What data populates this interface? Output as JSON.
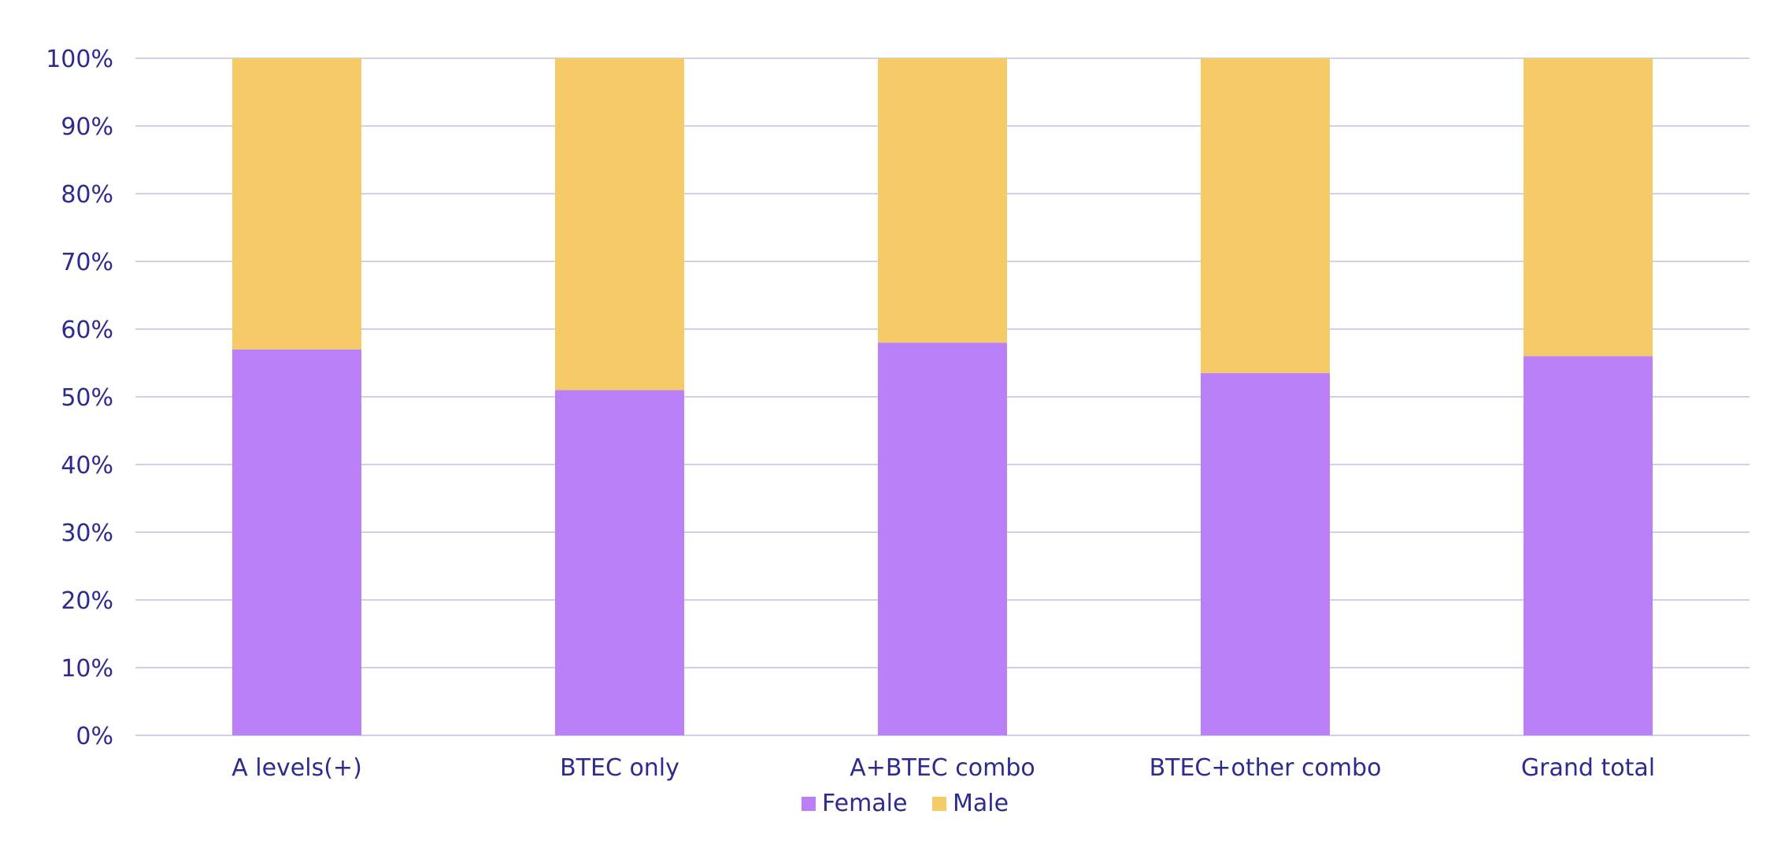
{
  "chart_data": {
    "type": "bar",
    "stacked": true,
    "categories": [
      "A levels(+)",
      "BTEC only",
      "A+BTEC combo",
      "BTEC+other combo",
      "Grand total"
    ],
    "series": [
      {
        "name": "Female",
        "values": [
          57,
          51,
          58,
          53.5,
          56
        ],
        "color": "#b980f8"
      },
      {
        "name": "Male",
        "values": [
          43,
          49,
          42,
          46.5,
          44
        ],
        "color": "#f6cb67"
      }
    ],
    "y_ticks": [
      "0%",
      "10%",
      "20%",
      "30%",
      "40%",
      "50%",
      "60%",
      "70%",
      "80%",
      "90%",
      "100%"
    ],
    "ylim": [
      0,
      100
    ],
    "grid": true,
    "legend_position": "bottom",
    "colors": {
      "text": "#2e2b8f",
      "grid": "#cfd0ee"
    }
  }
}
